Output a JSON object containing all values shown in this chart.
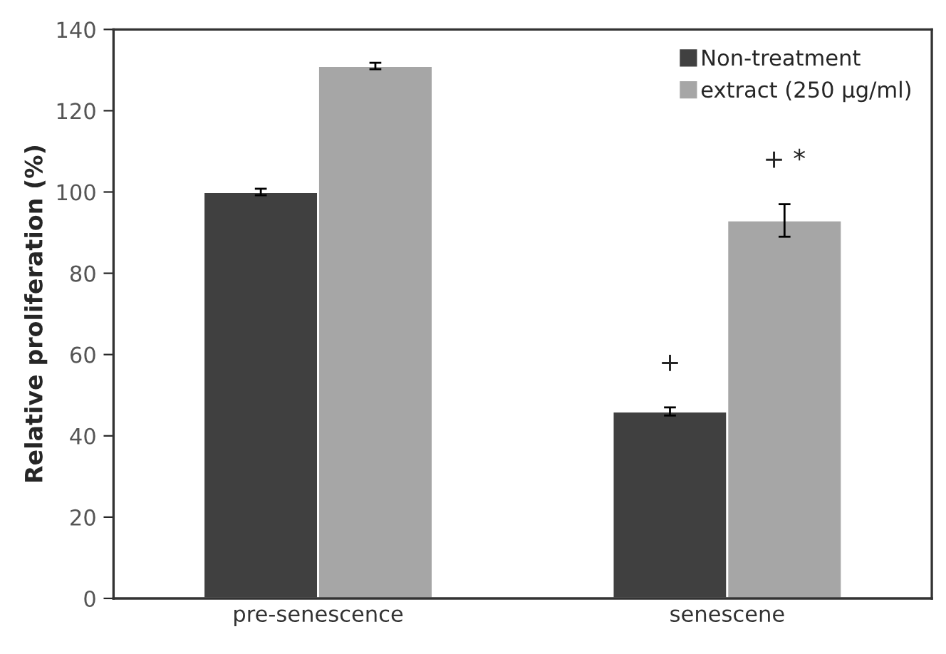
{
  "chart_data": {
    "type": "bar",
    "ylabel": "Relative proliferation (%)",
    "categories": [
      "pre-senescence",
      "senescene"
    ],
    "series": [
      {
        "name": "Non-treatment",
        "color": "#404040",
        "values": [
          100,
          46
        ],
        "errors": [
          0.8,
          1
        ]
      },
      {
        "name": "extract (250 μg/ml)",
        "color": "#a6a6a6",
        "values": [
          131,
          93
        ],
        "errors": [
          0.8,
          4
        ]
      }
    ],
    "ylim": [
      0,
      140
    ],
    "yticks": [
      0,
      20,
      40,
      60,
      80,
      100,
      120,
      140
    ],
    "grid": false,
    "legend": "top right",
    "annotations": [
      "+",
      "+ *"
    ]
  }
}
